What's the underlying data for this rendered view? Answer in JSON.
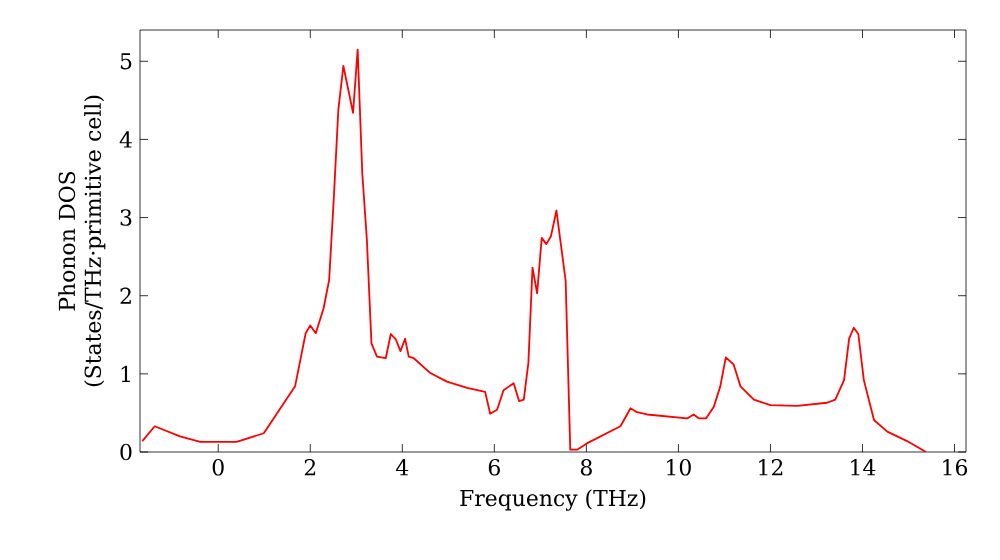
{
  "chart_data": {
    "type": "line",
    "xlabel": "Frequency (THz)",
    "ylabel": "Phonon DOS (States/THz·primitive cell)",
    "xlim": [
      -1.7,
      16.25
    ],
    "ylim": [
      0,
      5.4
    ],
    "xticks": [
      0,
      2,
      4,
      6,
      8,
      10,
      12,
      14,
      16
    ],
    "yticks": [
      0,
      1,
      2,
      3,
      4,
      5
    ],
    "grid": false,
    "marker": "none",
    "line_style": "solid",
    "series": [
      {
        "color": "#ff0000",
        "x": [
          -1.65,
          -1.38,
          -0.83,
          -0.39,
          0.4,
          0.99,
          1.67,
          1.9,
          2.0,
          2.12,
          2.29,
          2.41,
          2.51,
          2.61,
          2.72,
          2.93,
          3.03,
          3.13,
          3.23,
          3.33,
          3.45,
          3.64,
          3.75,
          3.86,
          3.96,
          4.06,
          4.14,
          4.25,
          4.61,
          4.97,
          5.41,
          5.8,
          5.91,
          6.06,
          6.2,
          6.42,
          6.54,
          6.64,
          6.74,
          6.83,
          6.93,
          7.03,
          7.13,
          7.23,
          7.35,
          7.55,
          7.65,
          7.8,
          8.01,
          8.74,
          8.96,
          9.1,
          9.32,
          10.19,
          10.33,
          10.45,
          10.6,
          10.77,
          10.91,
          11.03,
          11.2,
          11.35,
          11.64,
          12.0,
          12.58,
          13.23,
          13.41,
          13.6,
          13.71,
          13.81,
          13.91,
          14.03,
          14.25,
          14.54,
          14.97,
          15.38
        ],
        "values": [
          0.14,
          0.33,
          0.2,
          0.13,
          0.13,
          0.24,
          0.84,
          1.52,
          1.62,
          1.52,
          1.84,
          2.2,
          3.23,
          4.38,
          4.94,
          4.34,
          5.15,
          3.57,
          2.72,
          1.39,
          1.22,
          1.2,
          1.51,
          1.44,
          1.29,
          1.45,
          1.22,
          1.2,
          1.01,
          0.9,
          0.82,
          0.77,
          0.49,
          0.54,
          0.79,
          0.88,
          0.65,
          0.67,
          1.14,
          2.36,
          2.03,
          2.74,
          2.66,
          2.76,
          3.09,
          2.19,
          0.03,
          0.03,
          0.11,
          0.33,
          0.56,
          0.51,
          0.48,
          0.43,
          0.48,
          0.43,
          0.43,
          0.58,
          0.84,
          1.21,
          1.12,
          0.84,
          0.67,
          0.6,
          0.59,
          0.63,
          0.67,
          0.92,
          1.45,
          1.59,
          1.51,
          0.92,
          0.41,
          0.26,
          0.14,
          0.0
        ]
      }
    ]
  }
}
